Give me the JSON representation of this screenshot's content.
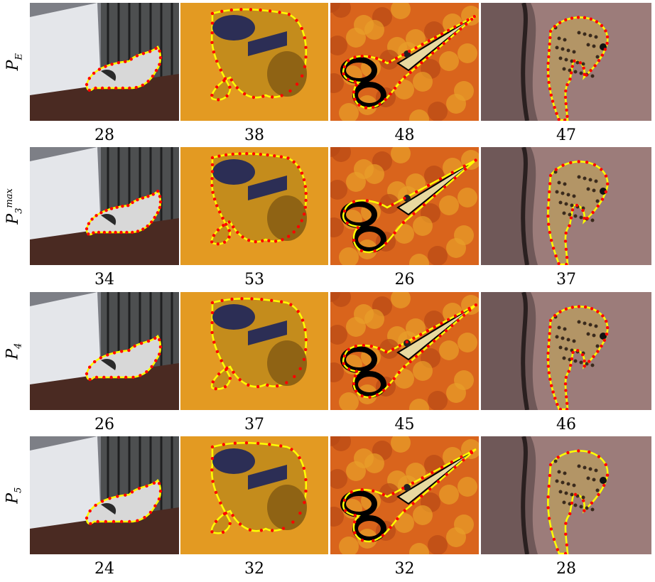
{
  "columns": [
    "cat",
    "elephant-toy",
    "scissors",
    "ocelot"
  ],
  "rows": [
    {
      "label_main": "P",
      "label_sub": "E",
      "label_sup": "",
      "counts": [
        "28",
        "38",
        "48",
        "47"
      ]
    },
    {
      "label_main": "P",
      "label_sub": "3",
      "label_sup": "max",
      "counts": [
        "34",
        "53",
        "26",
        "37"
      ]
    },
    {
      "label_main": "P",
      "label_sub": "4",
      "label_sup": "",
      "counts": [
        "26",
        "37",
        "45",
        "46"
      ]
    },
    {
      "label_main": "P",
      "label_sub": "5",
      "label_sup": "",
      "counts": [
        "24",
        "32",
        "32",
        "28"
      ]
    }
  ],
  "colors": {
    "contour": "#ffff00",
    "vertex": "#ff0000",
    "scissors_outline": "#000000"
  }
}
